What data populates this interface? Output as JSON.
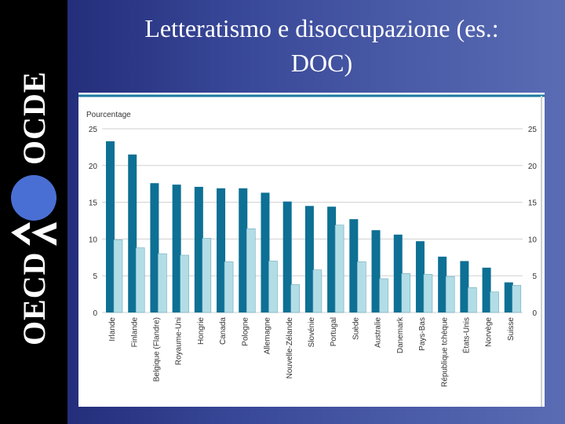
{
  "slide": {
    "title_line1": "Letteratismo e disoccupazione (es.:",
    "title_line2": "DOC)"
  },
  "logo": {
    "text_top": "OCDE",
    "text_bottom": "OECD"
  },
  "colors": {
    "background": "#2c3a8a",
    "sidebar": "#000000",
    "bar_dark": "#0d7094",
    "bar_light": "#b3dde6",
    "logo_circle": "#4a6fd4"
  },
  "chart_data": {
    "type": "bar",
    "ylabel": "Pourcentage",
    "ylim": [
      0,
      25
    ],
    "yticks": [
      0,
      5,
      10,
      15,
      20,
      25
    ],
    "grid": true,
    "categories": [
      "Irlande",
      "Finlande",
      "Belgique (Flandre)",
      "Royaume-Uni",
      "Hongrie",
      "Canada",
      "Pologne",
      "Allemagne",
      "Nouvelle-Zélande",
      "Slovénie",
      "Portugal",
      "Suède",
      "Australie",
      "Danemark",
      "Pays-Bas",
      "République tchèque",
      "États-Unis",
      "Norvège",
      "Suisse"
    ],
    "series": [
      {
        "values": [
          23.3,
          21.5,
          17.6,
          17.4,
          17.1,
          16.9,
          16.9,
          16.3,
          15.1,
          14.5,
          14.4,
          12.7,
          11.2,
          10.6,
          9.7,
          7.6,
          7.0,
          6.1,
          4.1
        ]
      },
      {
        "values": [
          9.9,
          8.8,
          8.0,
          7.8,
          10.1,
          6.9,
          11.4,
          7.0,
          3.8,
          5.8,
          11.9,
          6.9,
          4.6,
          5.3,
          5.2,
          4.9,
          3.4,
          2.8,
          3.7
        ]
      }
    ]
  }
}
